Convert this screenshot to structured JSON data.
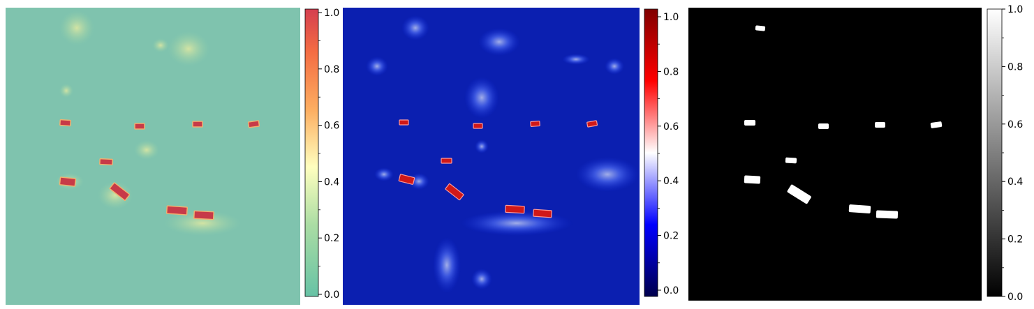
{
  "chart_data": [
    {
      "type": "heatmap",
      "colormap": "Spectral_r",
      "colorbar": {
        "range": [
          0.0,
          1.0
        ],
        "ticks": [
          "0.0",
          "0.2",
          "0.4",
          "0.6",
          "0.8",
          "1.0"
        ]
      },
      "background_color": "#7fc3ae"
    },
    {
      "type": "heatmap",
      "colormap": "seismic",
      "colorbar": {
        "range": [
          0.0,
          1.0
        ],
        "ticks": [
          "0.0",
          "0.2",
          "0.4",
          "0.6",
          "0.8",
          "1.0"
        ]
      },
      "background_color": "#0b1fb0"
    },
    {
      "type": "heatmap",
      "colormap": "gray",
      "colorbar": {
        "range": [
          0.0,
          1.0
        ],
        "ticks": [
          "0.0",
          "0.2",
          "0.4",
          "0.6",
          "0.8",
          "1.0"
        ]
      },
      "background_color": "#000000"
    }
  ]
}
